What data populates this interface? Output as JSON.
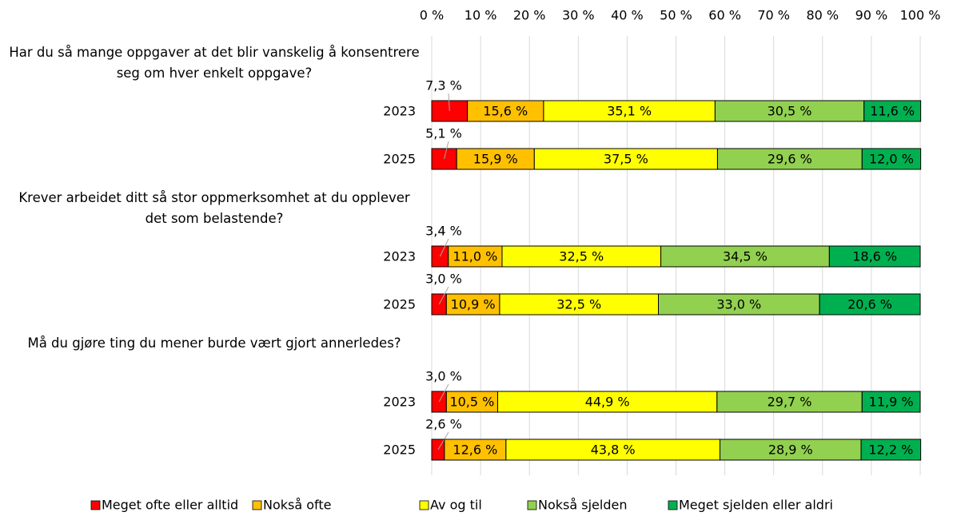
{
  "chart_data": {
    "type": "stacked-bar-horizontal",
    "groups": [
      "Har du så mange oppgaver at det blir vanskelig å konsentrere seg om hver enkelt oppgave?",
      "Krever arbeidet ditt så stor oppmerksomhet at du opplever det som belastende?",
      "Må du gjøre ting du mener burde vært gjort annerledes?"
    ],
    "categories": [
      "2023",
      "2025",
      "2023",
      "2025",
      "2023",
      "2025"
    ],
    "series": [
      {
        "name": "Meget ofte eller alltid",
        "color": "#ff0000",
        "values": [
          7.3,
          5.1,
          3.4,
          3.0,
          3.0,
          2.6
        ],
        "value_labels": [
          "7,3 %",
          "5,1 %",
          "3,4 %",
          "3,0 %",
          "3,0 %",
          "2,6 %"
        ]
      },
      {
        "name": "Nokså ofte",
        "color": "#ffc000",
        "values": [
          15.6,
          15.9,
          11.0,
          10.9,
          10.5,
          12.6
        ],
        "value_labels": [
          "15,6 %",
          "15,9 %",
          "11,0 %",
          "10,9 %",
          "10,5 %",
          "12,6 %"
        ]
      },
      {
        "name": "Av og til",
        "color": "#ffff00",
        "values": [
          35.1,
          37.5,
          32.5,
          32.5,
          44.9,
          43.8
        ],
        "value_labels": [
          "35,1 %",
          "37,5 %",
          "32,5 %",
          "32,5 %",
          "44,9 %",
          "43,8 %"
        ]
      },
      {
        "name": "Nokså sjelden",
        "color": "#92d050",
        "values": [
          30.5,
          29.6,
          34.5,
          33.0,
          29.7,
          28.9
        ],
        "value_labels": [
          "30,5 %",
          "29,6 %",
          "34,5 %",
          "33,0 %",
          "29,7 %",
          "28,9 %"
        ]
      },
      {
        "name": "Meget sjelden eller aldri",
        "color": "#00b050",
        "values": [
          11.6,
          12.0,
          18.6,
          20.6,
          11.9,
          12.2
        ],
        "value_labels": [
          "11,6 %",
          "12,0 %",
          "18,6 %",
          "20,6 %",
          "11,9 %",
          "12,2 %"
        ]
      }
    ],
    "xlim": [
      0,
      100
    ],
    "xticks": [
      {
        "value": 0,
        "label": "0 %"
      },
      {
        "value": 10,
        "label": "10 %"
      },
      {
        "value": 20,
        "label": "20 %"
      },
      {
        "value": 30,
        "label": "30 %"
      },
      {
        "value": 40,
        "label": "40 %"
      },
      {
        "value": 50,
        "label": "50 %"
      },
      {
        "value": 60,
        "label": "60 %"
      },
      {
        "value": 70,
        "label": "70 %"
      },
      {
        "value": 80,
        "label": "80 %"
      },
      {
        "value": 90,
        "label": "90 %"
      },
      {
        "value": 100,
        "label": "100 %"
      }
    ],
    "grid": true,
    "legend": "bottom"
  }
}
